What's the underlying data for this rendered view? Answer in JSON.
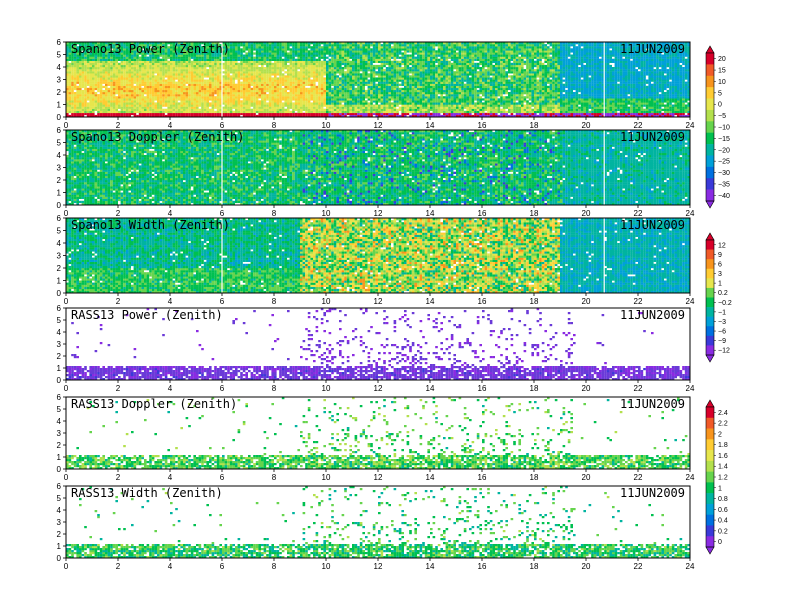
{
  "chart_data": {
    "type": "heatmap",
    "x_range": [
      0,
      24
    ],
    "y_range": [
      0,
      6
    ],
    "x_ticks": [
      "0",
      "2",
      "4",
      "6",
      "8",
      "10",
      "12",
      "14",
      "16",
      "18",
      "20",
      "22",
      "24"
    ],
    "y_ticks": [
      "0",
      "1",
      "2",
      "3",
      "4",
      "5",
      "6"
    ],
    "date_label": "11JUN2009",
    "panels": [
      {
        "title": "Spano13 Power (Zenith)",
        "kind": "wind",
        "field": "power"
      },
      {
        "title": "Spano13 Doppler (Zenith)",
        "kind": "wind",
        "field": "doppler"
      },
      {
        "title": "Spano13 Width (Zenith)",
        "kind": "wind",
        "field": "width"
      },
      {
        "title": "RASS13 Power (Zenith)",
        "kind": "rass",
        "field": "power"
      },
      {
        "title": "RASS13 Doppler (Zenith)",
        "kind": "rass",
        "field": "doppler"
      },
      {
        "title": "RASS13 Width (Zenith)",
        "kind": "rass",
        "field": "width"
      }
    ],
    "colorbars": [
      {
        "labels": [
          "20",
          "15",
          "10",
          "5",
          "0",
          "−5",
          "−10",
          "−15",
          "−20",
          "−25",
          "−30",
          "−35",
          "−40"
        ],
        "colors": [
          "#d7002a",
          "#f05a28",
          "#f7941d",
          "#ffcc33",
          "#e6e64d",
          "#b3e04d",
          "#66d44d",
          "#00c050",
          "#00b4a0",
          "#00a0d8",
          "#0070e0",
          "#3a3ad8",
          "#8a2be2"
        ]
      },
      {
        "labels": [
          "12",
          "9",
          "6",
          "3",
          "1",
          "0.2",
          "−0.2",
          "−1",
          "−3",
          "−6",
          "−9",
          "−12"
        ],
        "colors": [
          "#d7002a",
          "#f05a28",
          "#f7941d",
          "#ffcc33",
          "#e6e64d",
          "#66d44d",
          "#00c050",
          "#00b4a0",
          "#00a0d8",
          "#0070e0",
          "#3a3ad8",
          "#8a2be2"
        ]
      },
      {
        "labels": [
          "2.4",
          "2.2",
          "2",
          "1.8",
          "1.6",
          "1.4",
          "1.2",
          "1",
          "0.8",
          "0.6",
          "0.4",
          "0.2",
          "0"
        ],
        "colors": [
          "#d7002a",
          "#f05a28",
          "#f7941d",
          "#ffcc33",
          "#e6e64d",
          "#b3e04d",
          "#66d44d",
          "#00c050",
          "#00b4a0",
          "#00a0d8",
          "#0070e0",
          "#3a3ad8",
          "#8a2be2"
        ]
      }
    ]
  }
}
